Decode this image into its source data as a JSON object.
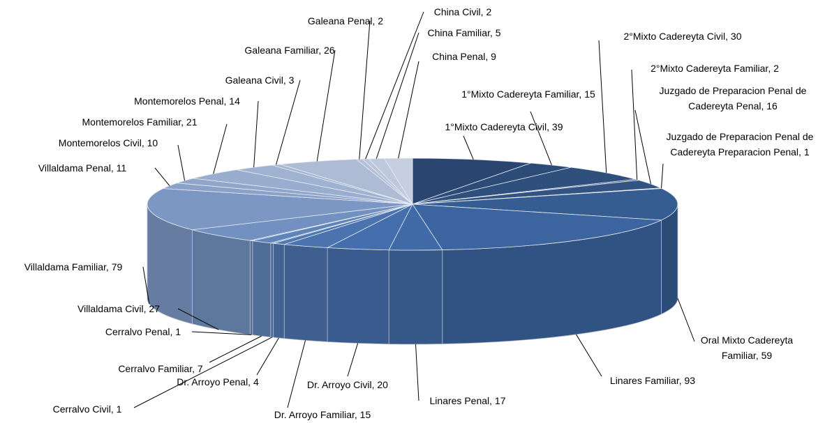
{
  "chart_data": {
    "type": "pie3d",
    "value_labels": [
      "1°Mixto Cadereyta Civil, 39",
      "1°Mixto Cadereyta Familiar, 15",
      "2°Mixto Cadereyta Civil, 30",
      "2°Mixto Cadereyta Familiar, 2",
      "Juzgado de Preparacion Penal de Cadereyta Penal, 16",
      "Juzgado de Preparacion Penal de Cadereyta Preparacion Penal, 1",
      "Oral Mixto Cadereyta Familiar, 59",
      "Linares Familiar, 93",
      "Linares Penal, 17",
      "Dr. Arroyo Civil, 20",
      "Dr. Arroyo Familiar, 15",
      "Dr. Arroyo Penal, 4",
      "Cerralvo Civil, 1",
      "Cerralvo Familiar, 7",
      "Cerralvo Penal, 1",
      "Villaldama Civil, 27",
      "Villaldama Familiar, 79",
      "Villaldama Penal, 11",
      "Montemorelos Civil, 10",
      "Montemorelos Familiar, 21",
      "Montemorelos Penal, 14",
      "Galeana Civil, 3",
      "Galeana Familiar, 26",
      "Galeana Penal, 2",
      "China Civil, 2",
      "China Familiar, 5",
      "China Penal, 9"
    ],
    "values": [
      39,
      15,
      30,
      2,
      16,
      1,
      59,
      93,
      17,
      20,
      15,
      4,
      1,
      7,
      1,
      27,
      79,
      11,
      10,
      21,
      14,
      3,
      26,
      2,
      2,
      5,
      9
    ],
    "colors": [
      "#2a4670",
      "#2d4b77",
      "#2f4f7d",
      "#314f7f",
      "#335483",
      "#355686",
      "#365d92",
      "#3c65a0",
      "#416ba6",
      "#456fac",
      "#4b74ae",
      "#5079b1",
      "#5880b6",
      "#5f85b8",
      "#6689bb",
      "#7291c0",
      "#7c97c3",
      "#8aa1c8",
      "#91a6cb",
      "#99adcf",
      "#a0b2d1",
      "#a6b6d3",
      "#adbbd5",
      "#b4c0d8",
      "#bac5da",
      "#bfc9dd",
      "#c6cee0"
    ]
  }
}
